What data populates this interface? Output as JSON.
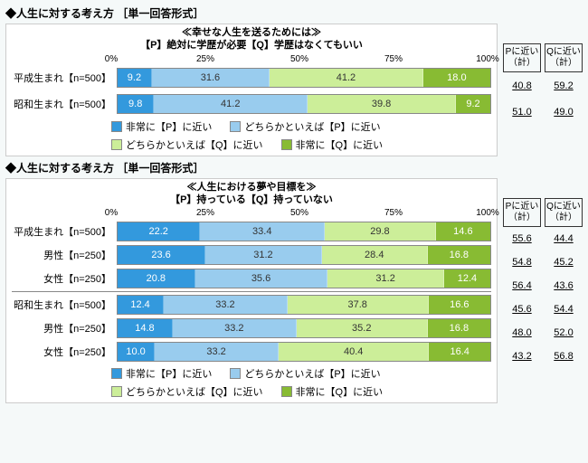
{
  "colors": {
    "seg1": "#3399dd",
    "seg2": "#99ccee",
    "seg3": "#ccee99",
    "seg4": "#88bb33"
  },
  "legend": {
    "l1": "非常に【P】に近い",
    "l2": "どちらかといえば【P】に近い",
    "l3": "どちらかといえば【Q】に近い",
    "l4": "非常に【Q】に近い"
  },
  "axis": {
    "t0": "0%",
    "t25": "25%",
    "t50": "50%",
    "t75": "75%",
    "t100": "100%"
  },
  "summaryHead": {
    "p": "Pに近い（計）",
    "q": "Qに近い（計）"
  },
  "chart1": {
    "sectionTitle": "◆人生に対する考え方  ［単一回答形式］",
    "title1": "≪幸せな人生を送るためには≫",
    "title2": "【P】絶対に学歴が必要【Q】学歴はなくてもいい",
    "rows": [
      {
        "label": "平成生まれ【n=500】",
        "v": [
          9.2,
          31.6,
          41.2,
          18.0
        ],
        "p": "40.8",
        "q": "59.2"
      },
      {
        "label": "昭和生まれ【n=500】",
        "v": [
          9.8,
          41.2,
          39.8,
          9.2
        ],
        "p": "51.0",
        "q": "49.0"
      }
    ]
  },
  "chart2": {
    "sectionTitle": "◆人生に対する考え方  ［単一回答形式］",
    "title1": "≪人生における夢や目標を≫",
    "title2": "【P】持っている【Q】持っていない",
    "rows": [
      {
        "label": "平成生まれ【n=500】",
        "v": [
          22.2,
          33.4,
          29.8,
          14.6
        ],
        "p": "55.6",
        "q": "44.4"
      },
      {
        "label": "男性【n=250】",
        "v": [
          23.6,
          31.2,
          28.4,
          16.8
        ],
        "p": "54.8",
        "q": "45.2"
      },
      {
        "label": "女性【n=250】",
        "v": [
          20.8,
          35.6,
          31.2,
          12.4
        ],
        "p": "56.4",
        "q": "43.6"
      },
      {
        "label": "昭和生まれ【n=500】",
        "v": [
          12.4,
          33.2,
          37.8,
          16.6
        ],
        "p": "45.6",
        "q": "54.4"
      },
      {
        "label": "男性【n=250】",
        "v": [
          14.8,
          33.2,
          35.2,
          16.8
        ],
        "p": "48.0",
        "q": "52.0"
      },
      {
        "label": "女性【n=250】",
        "v": [
          10.0,
          33.2,
          40.4,
          16.4
        ],
        "p": "43.2",
        "q": "56.8"
      }
    ]
  }
}
